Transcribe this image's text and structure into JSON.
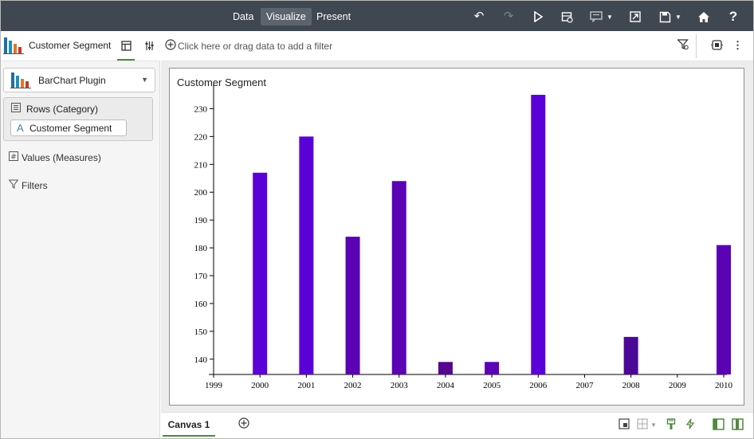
{
  "toolbar": {
    "modes": [
      "Data",
      "Visualize",
      "Present"
    ],
    "active_mode": "Visualize",
    "icons": [
      "undo-icon",
      "redo-icon",
      "play-icon",
      "data-refresh-icon",
      "comment-icon",
      "export-icon",
      "save-icon",
      "home-icon",
      "help-icon"
    ]
  },
  "left_panel": {
    "title": "Customer Segment",
    "plugin_label": "BarChart Plugin",
    "rows_label": "Rows (Category)",
    "row_item": "Customer Segment",
    "row_item_icon": "A",
    "values_label": "Values (Measures)",
    "filters_label": "Filters"
  },
  "filter_bar": {
    "placeholder": "Click here or drag data to add a filter"
  },
  "bottom": {
    "canvas_tab": "Canvas 1"
  },
  "colors": {
    "toolbar_bg": "#3f4750",
    "bar_primary": "#5a00d8",
    "bar_dark": "#4b0896",
    "accent_green": "#4f8a3c"
  },
  "chart_data": {
    "type": "bar",
    "title": "Customer Segment",
    "xlabel": "",
    "ylabel": "",
    "categories": [
      "1999",
      "2000",
      "2001",
      "2002",
      "2003",
      "2004",
      "2005",
      "2006",
      "2007",
      "2008",
      "2009",
      "2010"
    ],
    "values": [
      null,
      207,
      220,
      184,
      204,
      139,
      139,
      235,
      null,
      148,
      null,
      181
    ],
    "bar_colors": [
      "",
      "#5a00d8",
      "#5a00d8",
      "#5a02b4",
      "#5a02b4",
      "#55058f",
      "#5a02b4",
      "#5a00d8",
      "",
      "#4b0896",
      "",
      "#5a02b4"
    ],
    "yticks": [
      140,
      150,
      160,
      170,
      180,
      190,
      200,
      210,
      220,
      230
    ],
    "ylim": [
      134.5,
      237
    ],
    "grid": false,
    "legend": "none"
  }
}
